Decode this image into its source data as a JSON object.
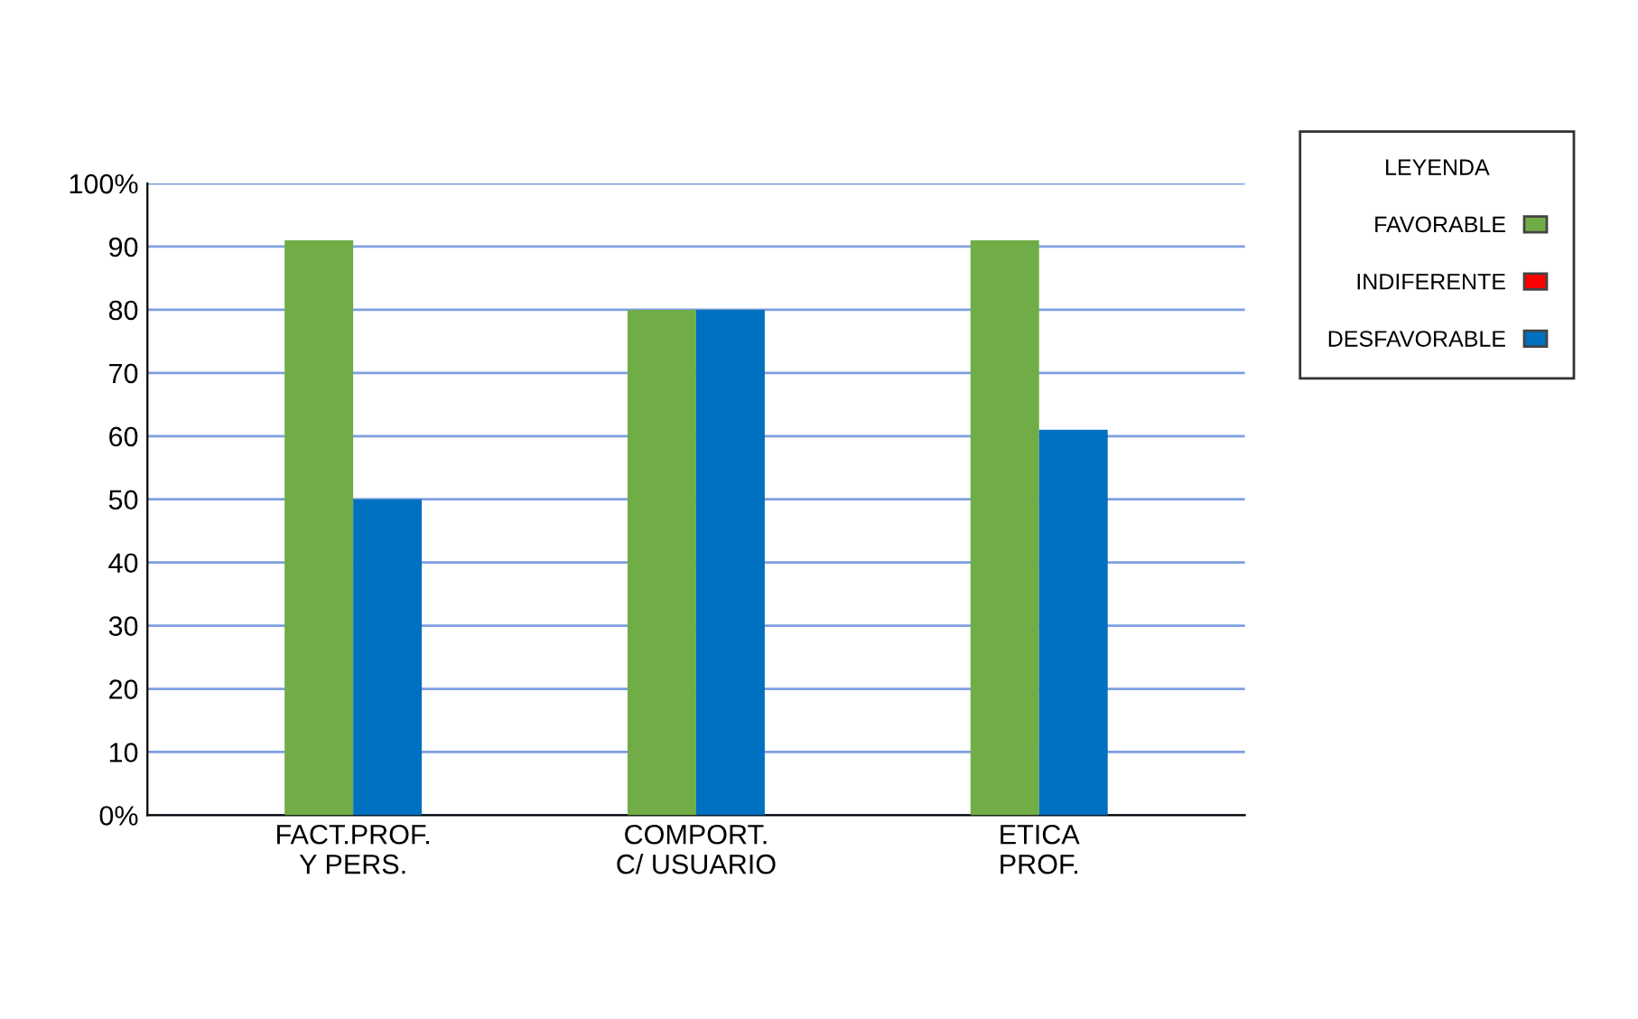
{
  "chart_data": {
    "type": "bar",
    "categories": [
      "FACT.PROF.\nY PERS.",
      "COMPORT.\nC/ USUARIO",
      "ETICA\nPROF."
    ],
    "series": [
      {
        "name": "FAVORABLE",
        "color": "#70ad47",
        "values": [
          91,
          80,
          91
        ]
      },
      {
        "name": "INDIFERENTE",
        "color": "#ff0000",
        "values": [
          null,
          null,
          null
        ]
      },
      {
        "name": "DESFAVORABLE",
        "color": "#0070c0",
        "values": [
          50,
          80,
          61
        ]
      }
    ],
    "legend_title": "LEYENDA",
    "legend": "right",
    "ylim": [
      0,
      100
    ],
    "yticks": [
      {
        "value": 0,
        "label": "0%"
      },
      10,
      20,
      30,
      40,
      50,
      60,
      70,
      80,
      90,
      {
        "value": 100,
        "label": "100%"
      }
    ],
    "grid": "y"
  }
}
